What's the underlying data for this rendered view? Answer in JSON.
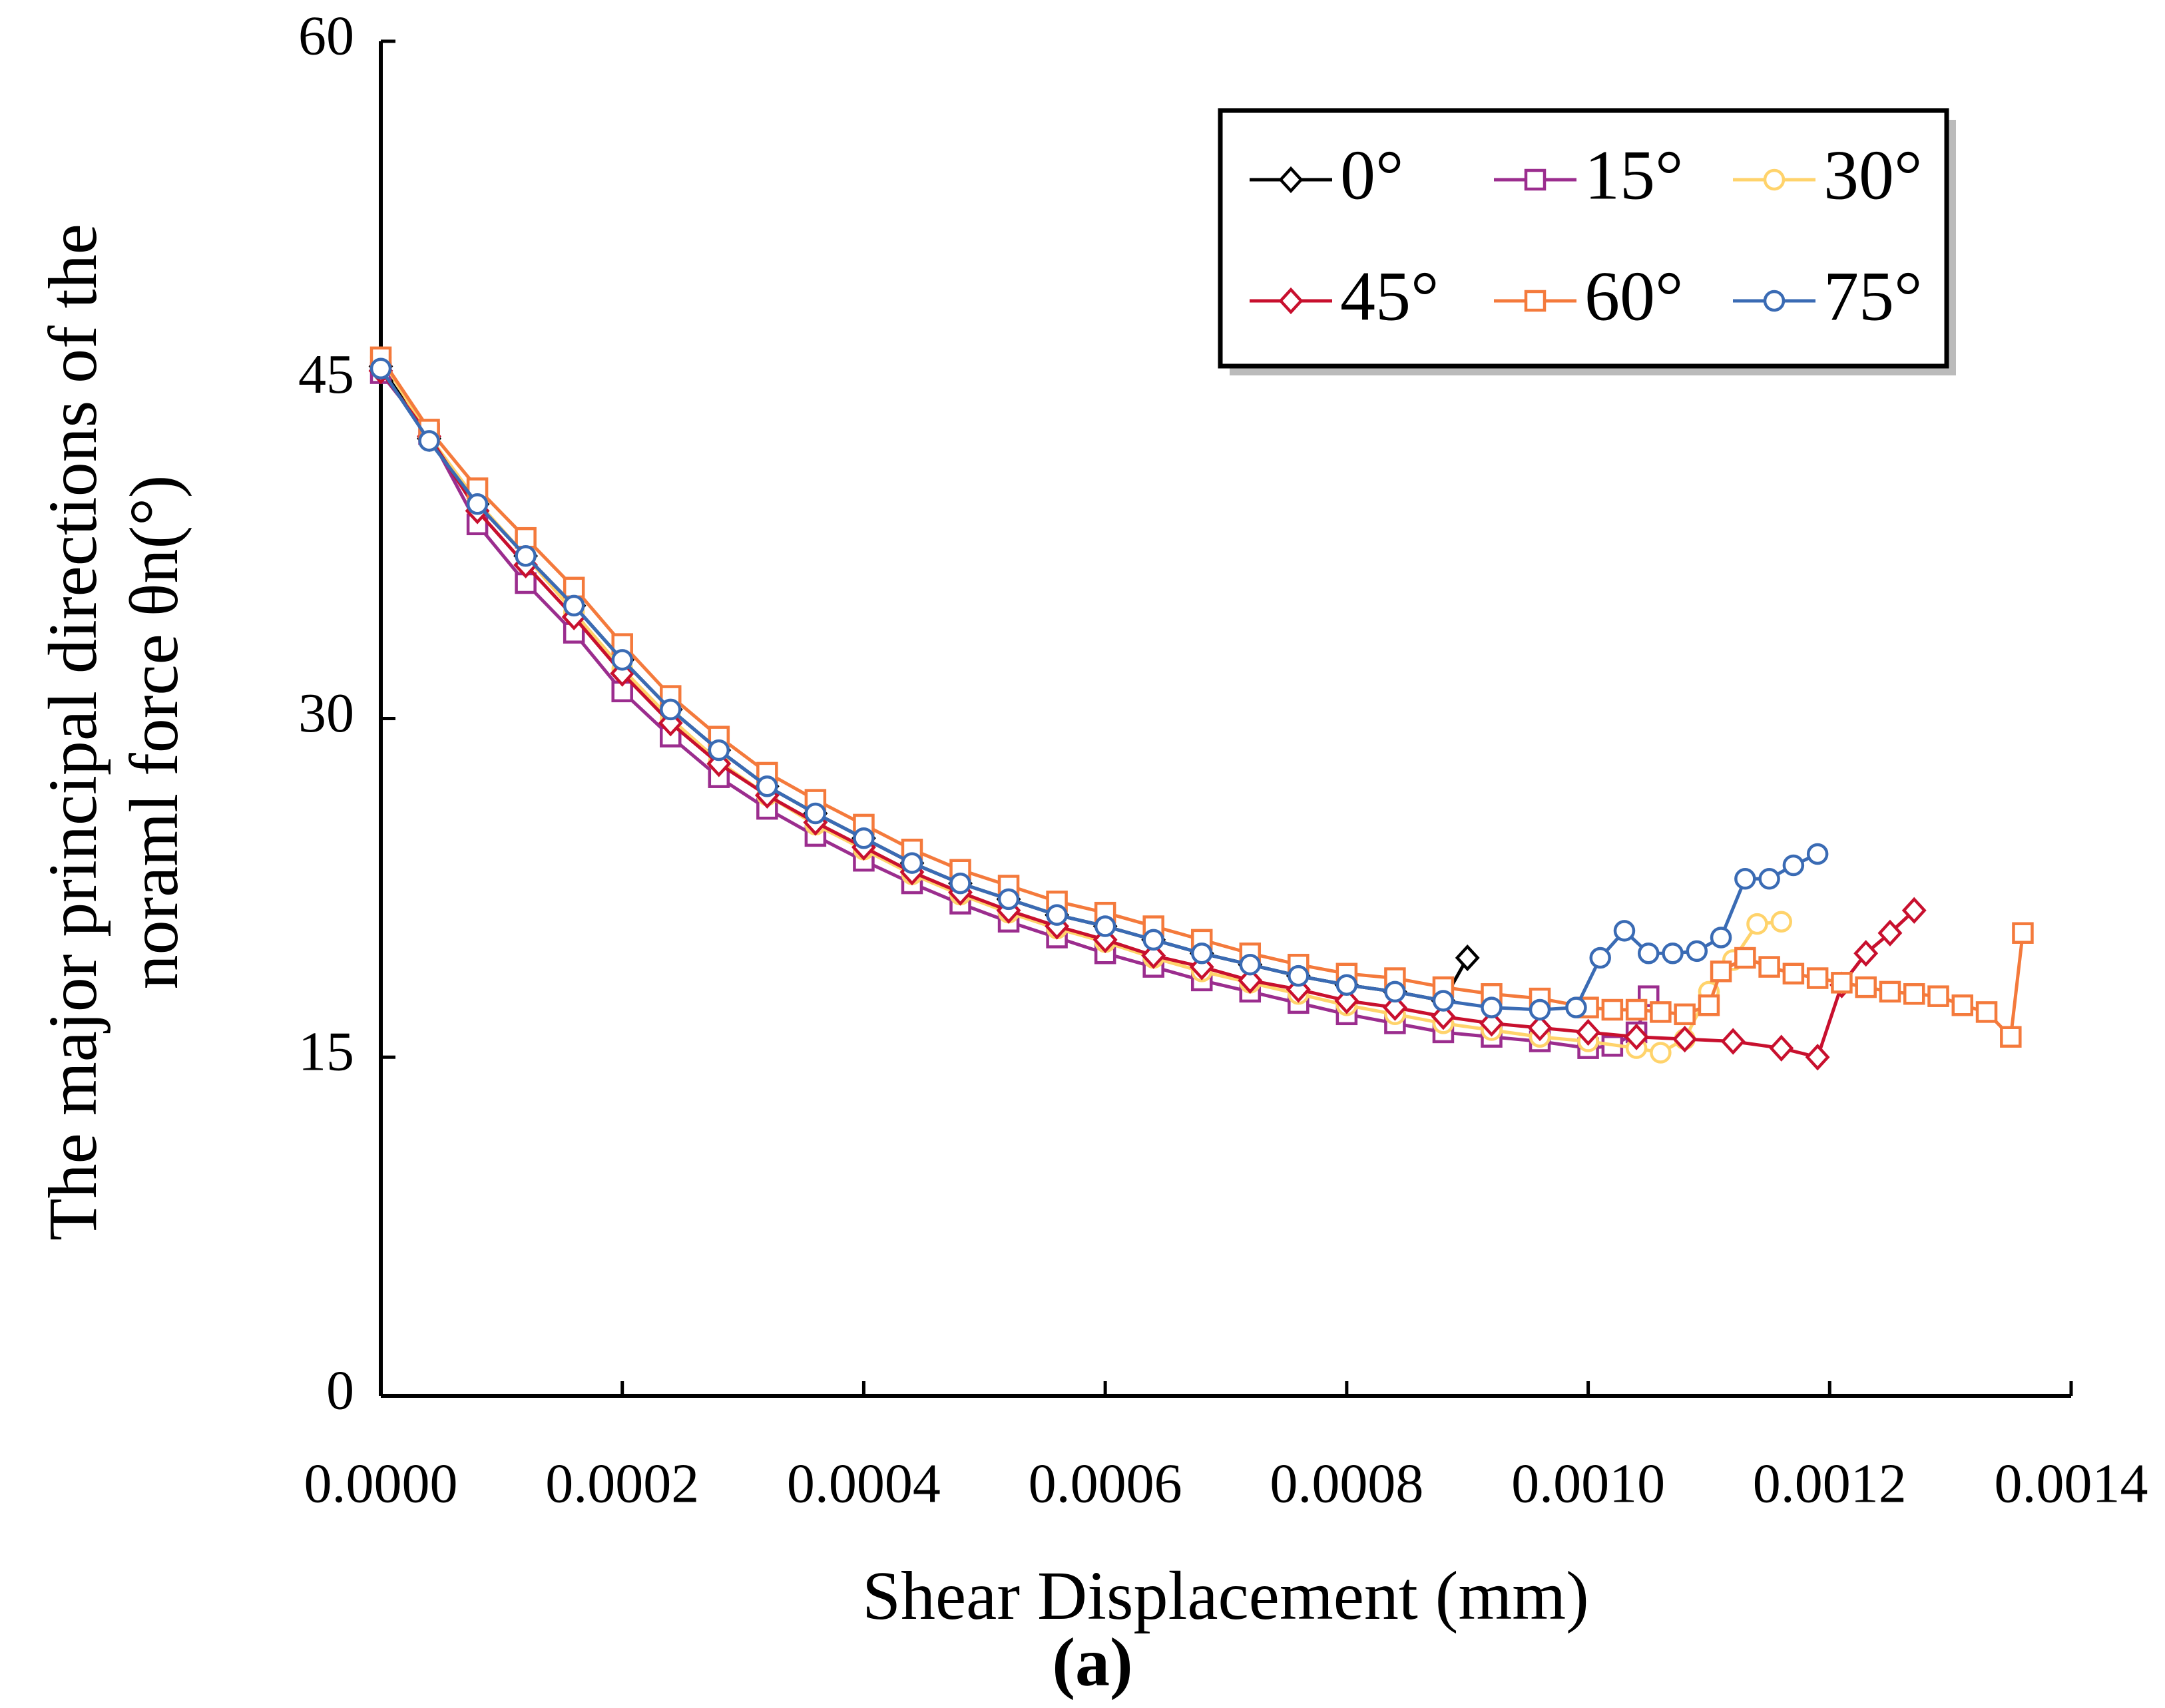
{
  "chart_data": {
    "type": "line",
    "xlabel": "Shear Displacement (mm)",
    "ylabel": [
      "The major principal directions of the",
      "noraml force θn(°)"
    ],
    "caption": "(a)",
    "xlim": [
      0,
      0.0014
    ],
    "ylim": [
      0,
      60
    ],
    "xticks": [
      {
        "value": 0,
        "label": "0.0000"
      },
      {
        "value": 0.0002,
        "label": "0.0002"
      },
      {
        "value": 0.0004,
        "label": "0.0004"
      },
      {
        "value": 0.0006,
        "label": "0.0006"
      },
      {
        "value": 0.0008,
        "label": "0.0008"
      },
      {
        "value": 0.001,
        "label": "0.0010"
      },
      {
        "value": 0.0012,
        "label": "0.0012"
      },
      {
        "value": 0.0014,
        "label": "0.0014"
      }
    ],
    "yticks": [
      0,
      15,
      30,
      45,
      60
    ],
    "legend": "upper right",
    "series": [
      {
        "name": "0°",
        "color": "#000000",
        "marker": "diamond",
        "x": [
          0,
          4e-05,
          8e-05,
          0.00012,
          0.00016,
          0.0002,
          0.00024,
          0.00028,
          0.00032,
          0.00036,
          0.0004,
          0.00044,
          0.00048,
          0.00052,
          0.00056,
          0.0006,
          0.00064,
          0.00068,
          0.00072,
          0.00076,
          0.0008,
          0.00084,
          0.00088,
          0.0009
        ],
        "values": [
          45.6,
          42.4,
          39.5,
          37.2,
          35,
          32.6,
          30.4,
          28.6,
          27,
          25.8,
          24.7,
          23.6,
          22.7,
          22,
          21.3,
          20.8,
          20.2,
          19.6,
          19.1,
          18.6,
          18.2,
          17.9,
          17.5,
          19.4
        ]
      },
      {
        "name": "15°",
        "color": "#9b2d8e",
        "marker": "square",
        "x": [
          0,
          4e-05,
          8e-05,
          0.00012,
          0.00016,
          0.0002,
          0.00024,
          0.00028,
          0.00032,
          0.00036,
          0.0004,
          0.00044,
          0.00048,
          0.00052,
          0.00056,
          0.0006,
          0.00064,
          0.00068,
          0.00072,
          0.00076,
          0.0008,
          0.00084,
          0.00088,
          0.00092,
          0.00096,
          0.001,
          0.00102,
          0.00104,
          0.00105
        ],
        "values": [
          45.3,
          42.6,
          38.6,
          36,
          33.8,
          31.2,
          29.2,
          27.4,
          26,
          24.8,
          23.7,
          22.7,
          21.8,
          21,
          20.3,
          19.6,
          19,
          18.4,
          17.9,
          17.4,
          16.9,
          16.5,
          16.1,
          15.9,
          15.7,
          15.4,
          15.5,
          16.1,
          17.7
        ]
      },
      {
        "name": "30°",
        "color": "#ffd36b",
        "marker": "circle",
        "x": [
          0,
          4e-05,
          8e-05,
          0.00012,
          0.00016,
          0.0002,
          0.00024,
          0.00028,
          0.00032,
          0.00036,
          0.0004,
          0.00044,
          0.00048,
          0.00052,
          0.00056,
          0.0006,
          0.00064,
          0.00068,
          0.00072,
          0.00076,
          0.0008,
          0.00084,
          0.00088,
          0.00092,
          0.00096,
          0.001,
          0.00104,
          0.00106,
          0.00108,
          0.0011,
          0.00112,
          0.00114,
          0.00116
        ],
        "values": [
          46,
          42.5,
          39.6,
          37.2,
          34.7,
          32.2,
          30,
          28.1,
          26.6,
          25.3,
          24.2,
          23.1,
          22.2,
          21.4,
          20.7,
          20.1,
          19.4,
          18.8,
          18.3,
          17.8,
          17.3,
          16.9,
          16.5,
          16.2,
          15.9,
          15.7,
          15.4,
          15.2,
          15.8,
          17.9,
          19.3,
          20.9,
          21
        ]
      },
      {
        "name": "45°",
        "color": "#c8102e",
        "marker": "diamond",
        "x": [
          0,
          4e-05,
          8e-05,
          0.00012,
          0.00016,
          0.0002,
          0.00024,
          0.00028,
          0.00032,
          0.00036,
          0.0004,
          0.00044,
          0.00048,
          0.00052,
          0.00056,
          0.0006,
          0.00064,
          0.00068,
          0.00072,
          0.00076,
          0.0008,
          0.00084,
          0.00088,
          0.00092,
          0.00096,
          0.001,
          0.00104,
          0.00108,
          0.00112,
          0.00116,
          0.00119,
          0.00121,
          0.00123,
          0.00125,
          0.00127
        ],
        "values": [
          45.4,
          42.5,
          39.2,
          36.8,
          34.5,
          32,
          29.8,
          28,
          26.6,
          25.4,
          24.3,
          23.2,
          22.3,
          21.5,
          20.8,
          20.2,
          19.5,
          19,
          18.4,
          18,
          17.5,
          17.2,
          16.8,
          16.5,
          16.3,
          16.1,
          15.9,
          15.8,
          15.7,
          15.4,
          15,
          18.2,
          19.6,
          20.5,
          21.5
        ]
      },
      {
        "name": "60°",
        "color": "#f47a3c",
        "marker": "square",
        "x": [
          0,
          4e-05,
          8e-05,
          0.00012,
          0.00016,
          0.0002,
          0.00024,
          0.00028,
          0.00032,
          0.00036,
          0.0004,
          0.00044,
          0.00048,
          0.00052,
          0.00056,
          0.0006,
          0.00064,
          0.00068,
          0.00072,
          0.00076,
          0.0008,
          0.00084,
          0.00088,
          0.00092,
          0.00096,
          0.001,
          0.00102,
          0.00104,
          0.00106,
          0.00108,
          0.0011,
          0.00111,
          0.00113,
          0.00115,
          0.00117,
          0.00119,
          0.00121,
          0.00123,
          0.00125,
          0.00127,
          0.00129,
          0.00131,
          0.00133,
          0.00135,
          0.00136
        ],
        "values": [
          46,
          42.8,
          40.2,
          38,
          35.8,
          33.3,
          31,
          29.2,
          27.6,
          26.4,
          25.3,
          24.2,
          23.3,
          22.6,
          21.9,
          21.4,
          20.8,
          20.2,
          19.6,
          19.1,
          18.7,
          18.5,
          18.1,
          17.8,
          17.6,
          17.2,
          17.1,
          17.1,
          17,
          16.9,
          17.3,
          18.8,
          19.4,
          19,
          18.7,
          18.5,
          18.3,
          18.1,
          17.9,
          17.8,
          17.7,
          17.3,
          17,
          15.9,
          20.5
        ]
      },
      {
        "name": "75°",
        "color": "#3a6bb4",
        "marker": "circle",
        "x": [
          0,
          4e-05,
          8e-05,
          0.00012,
          0.00016,
          0.0002,
          0.00024,
          0.00028,
          0.00032,
          0.00036,
          0.0004,
          0.00044,
          0.00048,
          0.00052,
          0.00056,
          0.0006,
          0.00064,
          0.00068,
          0.00072,
          0.00076,
          0.0008,
          0.00084,
          0.00088,
          0.00092,
          0.00096,
          0.00099,
          0.00101,
          0.00103,
          0.00105,
          0.00107,
          0.00109,
          0.00111,
          0.00113,
          0.00115,
          0.00117,
          0.00119
        ],
        "values": [
          45.5,
          42.3,
          39.5,
          37.2,
          35,
          32.6,
          30.4,
          28.6,
          27,
          25.8,
          24.7,
          23.6,
          22.7,
          22,
          21.3,
          20.8,
          20.2,
          19.6,
          19.1,
          18.6,
          18.2,
          17.9,
          17.5,
          17.2,
          17.1,
          17.2,
          19.4,
          20.6,
          19.6,
          19.6,
          19.7,
          20.3,
          22.9,
          22.9,
          23.5,
          24
        ]
      }
    ]
  }
}
